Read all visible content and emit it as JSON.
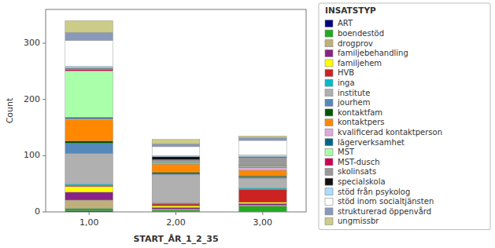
{
  "chart_data": {
    "type": "bar",
    "stacked": true,
    "categories": [
      "1,00",
      "2,00",
      "3,00"
    ],
    "xlabel": "START_ÅR_1_2_35",
    "ylabel": "Count",
    "legend_title": "INSATSTYP",
    "ylim": [
      0,
      360
    ],
    "yticks": [
      0,
      100,
      200,
      300
    ],
    "grid": false,
    "legend": "right",
    "series": [
      {
        "name": "ART",
        "color": "#00007f",
        "values": [
          2,
          1,
          1
        ]
      },
      {
        "name": "boendestöd",
        "color": "#22aa22",
        "values": [
          4,
          2,
          9
        ]
      },
      {
        "name": "drogprov",
        "color": "#bfaf7a",
        "values": [
          15,
          2,
          2
        ]
      },
      {
        "name": "familjebehandling",
        "color": "#882288",
        "values": [
          14,
          3,
          3
        ]
      },
      {
        "name": "familjehem",
        "color": "#ffff00",
        "values": [
          10,
          3,
          2
        ]
      },
      {
        "name": "HVB",
        "color": "#cc2222",
        "values": [
          2,
          3,
          23
        ]
      },
      {
        "name": "inga",
        "color": "#00bbcc",
        "values": [
          2,
          2,
          2
        ]
      },
      {
        "name": "institute",
        "color": "#b0b0b0",
        "values": [
          55,
          50,
          18
        ]
      },
      {
        "name": "jourhem",
        "color": "#5588bb",
        "values": [
          18,
          2,
          2
        ]
      },
      {
        "name": "kontaktfam",
        "color": "#005500",
        "values": [
          4,
          2,
          2
        ]
      },
      {
        "name": "kontaktpers",
        "color": "#ff8800",
        "values": [
          38,
          15,
          10
        ]
      },
      {
        "name": "kvalificerad kontaktperson",
        "color": "#ddaadd",
        "values": [
          2,
          2,
          5
        ]
      },
      {
        "name": "lägerverksamhet",
        "color": "#006688",
        "values": [
          2,
          1,
          1
        ]
      },
      {
        "name": "MST",
        "color": "#aaffaa",
        "values": [
          83,
          2,
          2
        ]
      },
      {
        "name": "MST-dusch",
        "color": "#cc0055",
        "values": [
          2,
          1,
          1
        ]
      },
      {
        "name": "skolinsats",
        "color": "#999999",
        "values": [
          2,
          2,
          14
        ]
      },
      {
        "name": "specialskola",
        "color": "#111111",
        "values": [
          1,
          5,
          1
        ]
      },
      {
        "name": "stöd från psykolog",
        "color": "#aaddff",
        "values": [
          3,
          2,
          3
        ]
      },
      {
        "name": "stöd inom socialtjänsten",
        "color": "#ffffff",
        "values": [
          46,
          16,
          26
        ]
      },
      {
        "name": "strukturerad öppenvård",
        "color": "#8899bb",
        "values": [
          14,
          5,
          5
        ]
      },
      {
        "name": "ungmissbr",
        "color": "#cccc88",
        "values": [
          21,
          8,
          3
        ]
      }
    ]
  }
}
